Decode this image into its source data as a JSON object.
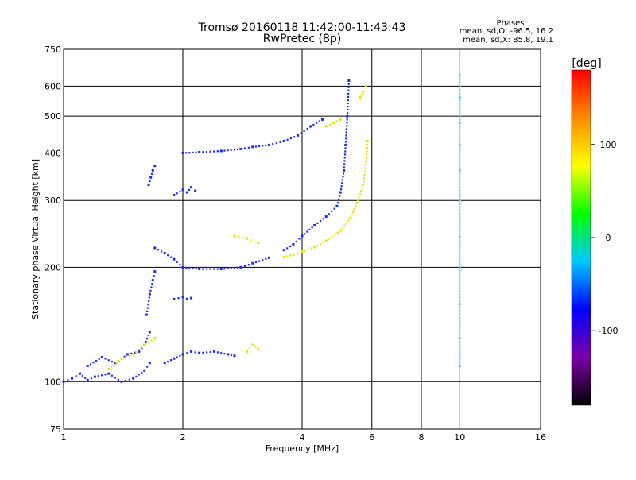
{
  "chart_data": {
    "type": "scatter",
    "title": "Tromsø 20160118 11:42:00-11:43:43",
    "subtitle": "RwPretec (8p)",
    "xlabel": "Frequency [MHz]",
    "ylabel": "Stationary phase Virtual Height [km]",
    "x_scale": "log",
    "y_scale": "log",
    "xlim": [
      1,
      16
    ],
    "ylim": [
      75,
      750
    ],
    "x_ticks": [
      1,
      2,
      4,
      6,
      8,
      10,
      16
    ],
    "y_ticks": [
      75,
      100,
      200,
      300,
      400,
      500,
      600,
      750
    ],
    "grid": true,
    "phase_stats": {
      "heading": "Phases",
      "line1": "mean, sd,O: -96.5, 16.2",
      "line2": "mean, sd,X:  85.8, 19.1"
    },
    "colorbar": {
      "unit": "[deg]",
      "ticks": [
        "100",
        "0",
        "-100"
      ],
      "tick_values": [
        100,
        0,
        -100
      ],
      "range": [
        -180,
        180
      ],
      "colors": [
        "#000000",
        "#7a00a8",
        "#0000ff",
        "#00c8ff",
        "#00ff00",
        "#ffff00",
        "#ff8c00",
        "#ff0000"
      ]
    },
    "series": [
      {
        "phase": -96.5,
        "color": "#1a2cf0",
        "segments": [
          {
            "f": [
              1.0,
              1.05,
              1.1,
              1.15,
              1.2,
              1.3,
              1.4,
              1.5,
              1.6,
              1.65
            ],
            "h": [
              100,
              102,
              105,
              101,
              103,
              105,
              100,
              102,
              107,
              112
            ]
          },
          {
            "f": [
              1.15,
              1.25,
              1.35,
              1.45,
              1.55,
              1.6,
              1.65
            ],
            "h": [
              110,
              116,
              112,
              118,
              120,
              125,
              135
            ]
          },
          {
            "f": [
              1.62,
              1.65,
              1.68,
              1.7
            ],
            "h": [
              150,
              170,
              185,
              195
            ]
          },
          {
            "f": [
              1.64,
              1.66,
              1.68,
              1.7
            ],
            "h": [
              330,
              345,
              360,
              370
            ]
          },
          {
            "f": [
              1.9,
              2.0,
              2.05,
              2.1
            ],
            "h": [
              165,
              167,
              165,
              166
            ]
          },
          {
            "f": [
              1.8,
              1.9,
              2.0,
              2.1,
              2.2,
              2.4,
              2.6,
              2.7
            ],
            "h": [
              112,
              115,
              118,
              120,
              119,
              120,
              118,
              117
            ]
          },
          {
            "f": [
              1.9,
              2.0,
              2.05,
              2.1,
              2.15
            ],
            "h": [
              310,
              320,
              315,
              325,
              318
            ]
          },
          {
            "f": [
              1.7,
              1.8,
              1.9,
              2.0,
              2.2,
              2.5,
              2.8,
              3.0,
              3.3
            ],
            "h": [
              225,
              218,
              210,
              200,
              198,
              198,
              200,
              205,
              212
            ]
          },
          {
            "f": [
              2.0,
              2.2,
              2.5,
              2.8,
              3.0,
              3.3,
              3.6,
              3.9,
              4.2,
              4.5
            ],
            "h": [
              400,
              402,
              405,
              410,
              415,
              420,
              430,
              445,
              470,
              490
            ]
          },
          {
            "f": [
              3.6,
              3.8,
              4.0,
              4.3,
              4.6,
              4.9,
              5.0,
              5.1,
              5.15,
              5.2,
              5.25
            ],
            "h": [
              222,
              230,
              242,
              258,
              272,
              290,
              315,
              360,
              420,
              500,
              620
            ]
          }
        ]
      },
      {
        "phase": 85.8,
        "color": "#f0e000",
        "segments": [
          {
            "f": [
              1.3,
              1.4,
              1.5,
              1.6,
              1.7
            ],
            "h": [
              108,
              115,
              118,
              125,
              130
            ]
          },
          {
            "f": [
              2.9,
              3.0,
              3.1
            ],
            "h": [
              120,
              125,
              122
            ]
          },
          {
            "f": [
              2.7,
              2.9,
              3.1
            ],
            "h": [
              242,
              238,
              232
            ]
          },
          {
            "f": [
              3.6,
              3.8,
              4.0,
              4.3,
              4.6,
              5.0,
              5.3,
              5.5,
              5.7,
              5.8,
              5.85
            ],
            "h": [
              213,
              216,
              220,
              226,
              235,
              250,
              270,
              295,
              330,
              380,
              430
            ]
          },
          {
            "f": [
              4.6,
              4.8,
              5.0
            ],
            "h": [
              470,
              480,
              490
            ]
          },
          {
            "f": [
              5.6,
              5.7,
              5.8
            ],
            "h": [
              560,
              580,
              600
            ]
          }
        ]
      },
      {
        "phase": 20,
        "color": "#5ad0e0",
        "segments": [
          {
            "f": [
              10.0,
              10.0,
              10.0,
              10.0,
              10.0,
              10.0,
              10.0,
              10.0,
              10.0,
              10.0,
              10.0
            ],
            "h": [
              110,
              130,
              160,
              200,
              240,
              300,
              360,
              420,
              480,
              560,
              640
            ]
          }
        ]
      }
    ]
  }
}
